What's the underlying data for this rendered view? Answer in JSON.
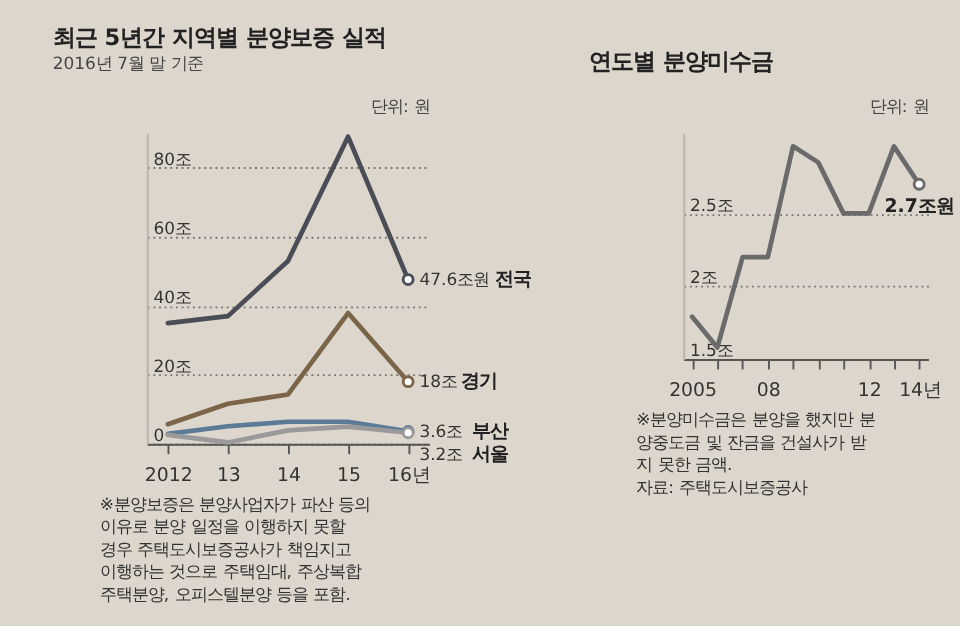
{
  "chart_data": [
    {
      "type": "line",
      "title": "최근 5년간 지역별 분양보증 실적",
      "subtitle": "2016년 7월 말 기준",
      "ylabel": "단위: 원",
      "categories": [
        "2012",
        "13",
        "14",
        "15",
        "16년"
      ],
      "series": [
        {
          "name": "전국",
          "color": "#4a4d55",
          "values": [
            35,
            37,
            53,
            89,
            47.6
          ],
          "value_labels": [
            null,
            null,
            null,
            null,
            "47.6조원"
          ]
        },
        {
          "name": "경기",
          "color": "#7a6548",
          "values": [
            5.7,
            11.6,
            14.3,
            37.9,
            18
          ],
          "value_labels": [
            null,
            null,
            null,
            null,
            "18조"
          ]
        },
        {
          "name": "부산",
          "color": "#5a7a96",
          "values": [
            2.9,
            5.1,
            6.4,
            6.4,
            3.6
          ],
          "value_labels": [
            null,
            null,
            null,
            null,
            "3.6조"
          ]
        },
        {
          "name": "서울",
          "color": "#9a9a9a",
          "values": [
            2.6,
            0.4,
            3.9,
            5,
            3.2
          ],
          "value_labels": [
            null,
            null,
            null,
            null,
            "3.2조"
          ]
        }
      ],
      "ylim": [
        0,
        90
      ],
      "yticks": [
        0,
        {
          "value": 20,
          "label": "20조"
        },
        {
          "value": 40,
          "label": "40조"
        },
        {
          "value": 60,
          "label": "60조"
        },
        {
          "value": 80,
          "label": "80조"
        }
      ],
      "grid": "y",
      "legend": false,
      "annotations": [
        "※분양보증은 분양사업자가 파산 등의 이유로 분양 일정을 이행하지 못할 경우 주택도시보증공사가 책임지고 이행하는 것으로 주택임대, 주상복합주택분양, 오피스텔분양 등을 포함."
      ]
    },
    {
      "type": "line",
      "title": "연도별 분양미수금",
      "ylabel": "단위: 원",
      "categories": [
        "2005",
        null,
        null,
        "08",
        null,
        null,
        null,
        "12",
        null,
        "14년"
      ],
      "series": [
        {
          "color": "#6a6a6a",
          "values": [
            1.79,
            1.58,
            2.2,
            2.2,
            2.96,
            2.85,
            2.5,
            2.5,
            2.96,
            2.7
          ],
          "value_labels": [
            null,
            null,
            null,
            null,
            null,
            null,
            null,
            null,
            null,
            "2.7조원"
          ]
        }
      ],
      "ylim": [
        1.5,
        3.05
      ],
      "yticks": [
        {
          "value": 1.5,
          "label": "1.5조"
        },
        {
          "value": 2,
          "label": "2조"
        },
        {
          "value": 2.5,
          "label": "2.5조"
        }
      ],
      "grid": "y",
      "legend": false,
      "annotations": [
        "※분양미수금은 분양을 했지만 분양중도금 및 잔금을 건설사가 받지 못한 금액.",
        "자료: 주택도시보증공사"
      ]
    }
  ]
}
